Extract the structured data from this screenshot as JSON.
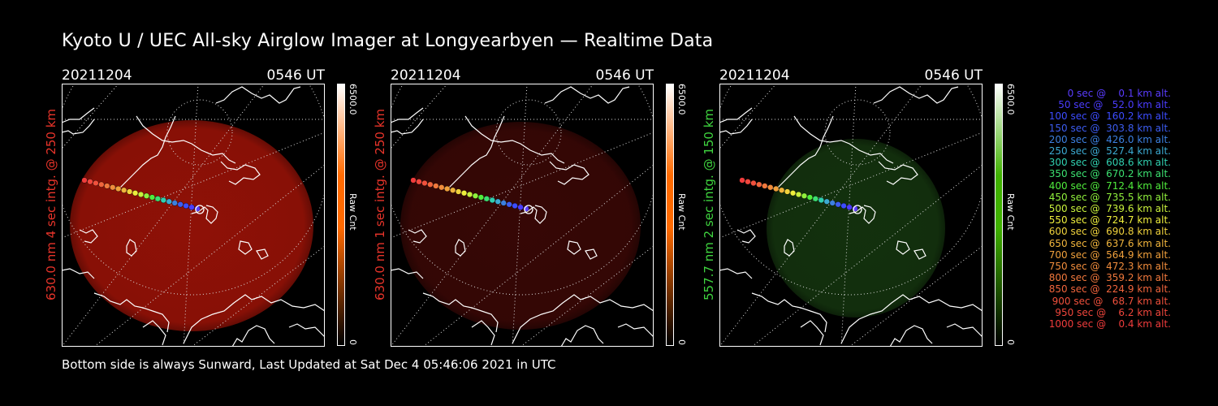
{
  "title": "Kyoto U / UEC All-sky Airglow Imager at Longyearbyen — Realtime Data",
  "footer": "Bottom side is always Sunward, Last Updated at Sat Dec  4 05:46:06 2021 in UTC",
  "panels": [
    {
      "date": "20211204",
      "time": "0546 UT",
      "ylabel": "630.0 nm 4 sec intg. @ 250 km",
      "cbar_max": "6500.0",
      "cbar_min": "0",
      "cbar_title": "Raw Cnt",
      "label_color": "#e8342a",
      "glow_color": "#a81408",
      "bar_color": "#ff6a00",
      "glow_opacity": 0.85
    },
    {
      "date": "20211204",
      "time": "0546 UT",
      "ylabel": "630.0 nm 1 sec intg. @ 250 km",
      "cbar_max": "6500.0",
      "cbar_min": "0",
      "cbar_title": "Raw Cnt",
      "label_color": "#e8342a",
      "glow_color": "#3c0806",
      "bar_color": "#ff6a00",
      "glow_opacity": 0.9
    },
    {
      "date": "20211204",
      "time": "0546 UT",
      "ylabel": "557.7 nm 2 sec intg. @ 150 km",
      "cbar_max": "6500.0",
      "cbar_min": "0",
      "cbar_title": "Raw Cnt",
      "label_color": "#3fd43f",
      "glow_color": "#15360f",
      "bar_color": "#3fb000",
      "glow_opacity": 0.9
    }
  ],
  "legend": [
    {
      "text": "   0 sec @    0.1 km alt.",
      "color": "#5a3cff"
    },
    {
      "text": "  50 sec @   52.0 km alt.",
      "color": "#4b3cff"
    },
    {
      "text": " 100 sec @  160.2 km alt.",
      "color": "#3c4cff"
    },
    {
      "text": " 150 sec @  303.8 km alt.",
      "color": "#3c5cf0"
    },
    {
      "text": " 200 sec @  426.0 km alt.",
      "color": "#3c80e0"
    },
    {
      "text": " 250 sec @  527.4 km alt.",
      "color": "#3caad2"
    },
    {
      "text": " 300 sec @  608.6 km alt.",
      "color": "#30d0b0"
    },
    {
      "text": " 350 sec @  670.2 km alt.",
      "color": "#3ce070"
    },
    {
      "text": " 400 sec @  712.4 km alt.",
      "color": "#50ec3c"
    },
    {
      "text": " 450 sec @  735.5 km alt.",
      "color": "#90f03c"
    },
    {
      "text": " 500 sec @  739.6 km alt.",
      "color": "#c8f03c"
    },
    {
      "text": " 550 sec @  724.7 km alt.",
      "color": "#eeee3c"
    },
    {
      "text": " 600 sec @  690.8 km alt.",
      "color": "#f0d23c"
    },
    {
      "text": " 650 sec @  637.6 km alt.",
      "color": "#f0b43c"
    },
    {
      "text": " 700 sec @  564.9 km alt.",
      "color": "#f0a03c"
    },
    {
      "text": " 750 sec @  472.3 km alt.",
      "color": "#f08c3c"
    },
    {
      "text": " 800 sec @  359.2 km alt.",
      "color": "#f0783c"
    },
    {
      "text": " 850 sec @  224.9 km alt.",
      "color": "#f0643c"
    },
    {
      "text": " 900 sec @   68.7 km alt.",
      "color": "#f0503c"
    },
    {
      "text": " 950 sec @    6.2 km alt.",
      "color": "#f0463c"
    },
    {
      "text": "1000 sec @    0.4 km alt.",
      "color": "#f03c3c"
    }
  ]
}
